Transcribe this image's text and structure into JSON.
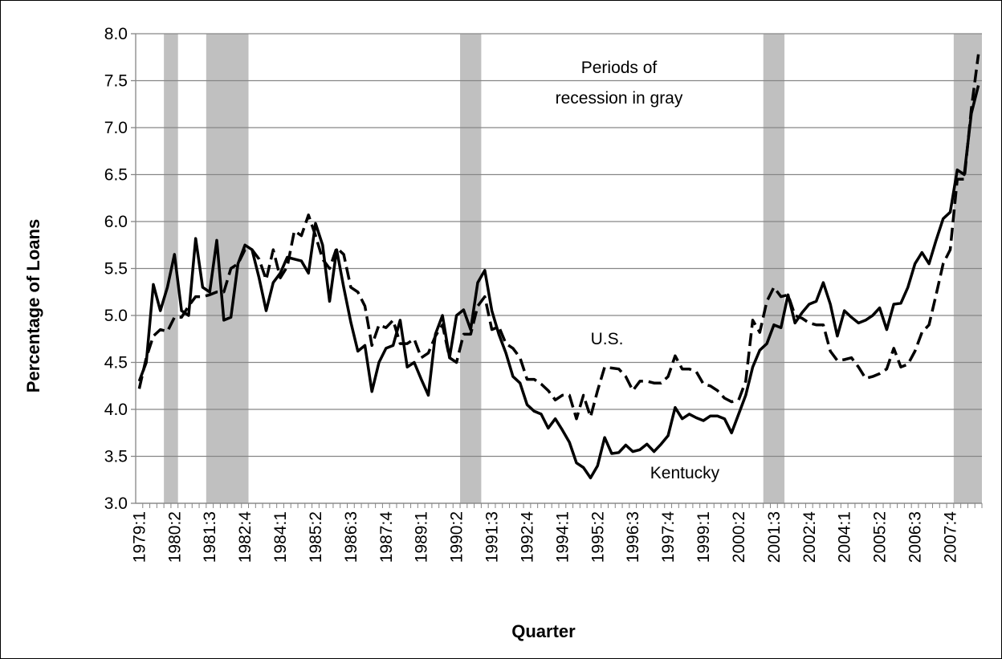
{
  "chart_data": {
    "type": "line",
    "y_label": "Percentage of Loans",
    "x_label": "Quarter",
    "annotation_lines": [
      "Periods of",
      "recession  in gray"
    ],
    "shaded_periods": [
      [
        4,
        5
      ],
      [
        10,
        15
      ],
      [
        46,
        48
      ],
      [
        89,
        91
      ],
      [
        116,
        119
      ]
    ],
    "shade_color": "#c0c0c0",
    "categories": [
      "1979:1",
      null,
      null,
      null,
      null,
      "1980:2",
      null,
      null,
      null,
      null,
      "1981:3",
      null,
      null,
      null,
      null,
      "1982:4",
      null,
      null,
      null,
      null,
      "1984:1",
      null,
      null,
      null,
      null,
      "1985:2",
      null,
      null,
      null,
      null,
      "1986:3",
      null,
      null,
      null,
      null,
      "1987:4",
      null,
      null,
      null,
      null,
      "1989:1",
      null,
      null,
      null,
      null,
      "1990:2",
      null,
      null,
      null,
      null,
      "1991:3",
      null,
      null,
      null,
      null,
      "1992:4",
      null,
      null,
      null,
      null,
      "1994:1",
      null,
      null,
      null,
      null,
      "1995:2",
      null,
      null,
      null,
      null,
      "1996:3",
      null,
      null,
      null,
      null,
      "1997:4",
      null,
      null,
      null,
      null,
      "1999:1",
      null,
      null,
      null,
      null,
      "2000:2",
      null,
      null,
      null,
      null,
      "2001:3",
      null,
      null,
      null,
      null,
      "2002:4",
      null,
      null,
      null,
      null,
      "2004:1",
      null,
      null,
      null,
      null,
      "2005:2",
      null,
      null,
      null,
      null,
      "2006:3",
      null,
      null,
      null,
      null,
      "2007:4",
      null,
      null,
      null,
      null
    ],
    "series": [
      {
        "name": "Kentucky",
        "color": "#000000",
        "dash": false,
        "values": [
          4.3,
          4.5,
          5.33,
          5.05,
          5.3,
          5.65,
          5.05,
          5.0,
          5.82,
          5.3,
          5.25,
          5.8,
          4.95,
          4.98,
          5.55,
          5.75,
          5.7,
          5.4,
          5.05,
          5.35,
          5.45,
          5.62,
          5.6,
          5.58,
          5.45,
          5.98,
          5.75,
          5.15,
          5.7,
          5.3,
          4.93,
          4.62,
          4.68,
          4.19,
          4.5,
          4.65,
          4.68,
          4.95,
          4.45,
          4.5,
          4.32,
          4.15,
          4.8,
          5.0,
          4.55,
          5.0,
          5.06,
          4.85,
          5.35,
          5.48,
          5.05,
          4.8,
          4.6,
          4.35,
          4.28,
          4.05,
          3.98,
          3.95,
          3.8,
          3.9,
          3.78,
          3.65,
          3.43,
          3.38,
          3.27,
          3.4,
          3.7,
          3.53,
          3.54,
          3.62,
          3.55,
          3.57,
          3.63,
          3.55,
          3.63,
          3.72,
          4.02,
          3.9,
          3.95,
          3.91,
          3.88,
          3.93,
          3.93,
          3.9,
          3.75,
          3.95,
          4.15,
          4.45,
          4.63,
          4.7,
          4.9,
          4.87,
          5.22,
          4.92,
          5.03,
          5.12,
          5.15,
          5.35,
          5.12,
          4.78,
          5.05,
          4.98,
          4.92,
          4.95,
          5.0,
          5.08,
          4.85,
          5.12,
          5.13,
          5.3,
          5.55,
          5.67,
          5.55,
          5.8,
          6.03,
          6.1,
          6.55,
          6.5,
          7.15,
          7.45
        ]
      },
      {
        "name": "U.S.",
        "color": "#000000",
        "dash": true,
        "values": [
          4.22,
          4.55,
          4.78,
          4.85,
          4.83,
          4.98,
          4.98,
          5.1,
          5.2,
          5.2,
          5.22,
          5.25,
          5.25,
          5.5,
          5.55,
          5.7,
          5.7,
          5.6,
          5.38,
          5.7,
          5.4,
          5.52,
          5.9,
          5.85,
          6.07,
          5.85,
          5.6,
          5.5,
          5.72,
          5.65,
          5.3,
          5.25,
          5.1,
          4.68,
          4.9,
          4.87,
          4.95,
          4.7,
          4.7,
          4.75,
          4.55,
          4.6,
          4.78,
          4.9,
          4.55,
          4.5,
          4.8,
          4.8,
          5.1,
          5.2,
          4.85,
          4.88,
          4.7,
          4.65,
          4.55,
          4.32,
          4.32,
          4.27,
          4.2,
          4.1,
          4.15,
          4.15,
          3.9,
          4.15,
          3.92,
          4.2,
          4.45,
          4.44,
          4.43,
          4.35,
          4.2,
          4.3,
          4.3,
          4.28,
          4.28,
          4.35,
          4.57,
          4.43,
          4.43,
          4.4,
          4.27,
          4.25,
          4.2,
          4.12,
          4.08,
          4.1,
          4.3,
          4.95,
          4.82,
          5.15,
          5.3,
          5.2,
          5.22,
          5.0,
          4.97,
          4.92,
          4.9,
          4.9,
          4.62,
          4.52,
          4.53,
          4.55,
          4.45,
          4.33,
          4.35,
          4.38,
          4.43,
          4.65,
          4.45,
          4.48,
          4.62,
          4.82,
          4.9,
          5.22,
          5.55,
          5.7,
          6.45,
          6.45,
          7.2,
          7.78
        ]
      }
    ],
    "ylim": [
      3.0,
      8.0
    ],
    "yticks": [
      {
        "value": 3,
        "label": "3.0"
      },
      3.5,
      {
        "value": 4,
        "label": "4.0"
      },
      4.5,
      {
        "value": 5,
        "label": "5.0"
      },
      5.5,
      {
        "value": 6,
        "label": "6.0"
      },
      6.5,
      {
        "value": 7,
        "label": "7.0"
      },
      7.5,
      {
        "value": 8,
        "label": "8.0"
      }
    ],
    "grid": true
  }
}
